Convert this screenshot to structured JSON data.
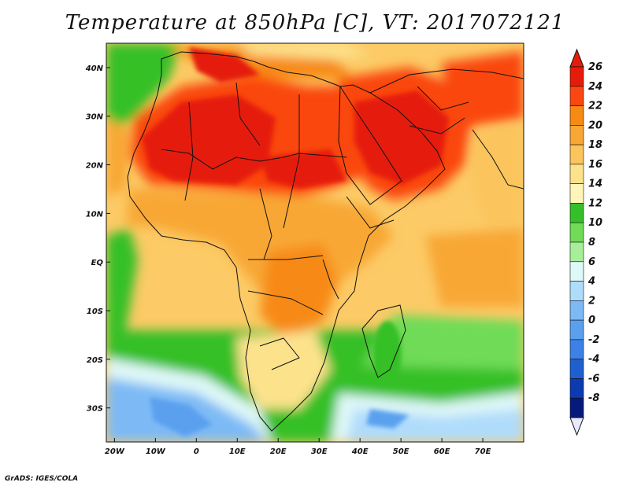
{
  "title": "Temperature at 850hPa [C], VT: 2017072121",
  "credit": "GrADS: IGES/COLA",
  "map": {
    "projection": "lat-lon",
    "lon_range": [
      -22,
      80
    ],
    "lat_range": [
      -37,
      45
    ],
    "lon_ticks": [
      {
        "value": -20,
        "label": "20W"
      },
      {
        "value": -10,
        "label": "10W"
      },
      {
        "value": 0,
        "label": "0"
      },
      {
        "value": 10,
        "label": "10E"
      },
      {
        "value": 20,
        "label": "20E"
      },
      {
        "value": 30,
        "label": "30E"
      },
      {
        "value": 40,
        "label": "40E"
      },
      {
        "value": 50,
        "label": "50E"
      },
      {
        "value": 60,
        "label": "60E"
      },
      {
        "value": 70,
        "label": "70E"
      }
    ],
    "lat_ticks": [
      {
        "value": 40,
        "label": "40N"
      },
      {
        "value": 30,
        "label": "30N"
      },
      {
        "value": 20,
        "label": "20N"
      },
      {
        "value": 10,
        "label": "10N"
      },
      {
        "value": 0,
        "label": "EQ"
      },
      {
        "value": -10,
        "label": "10S"
      },
      {
        "value": -20,
        "label": "20S"
      },
      {
        "value": -30,
        "label": "30S"
      }
    ],
    "variable": "850hPa temperature",
    "units": "C"
  },
  "colorbar": {
    "labels": [
      "26",
      "24",
      "22",
      "20",
      "18",
      "16",
      "14",
      "12",
      "10",
      "8",
      "6",
      "4",
      "2",
      "0",
      "-2",
      "-4",
      "-6",
      "-8"
    ],
    "colors": [
      "#e51b0b",
      "#fa4610",
      "#f78a12",
      "#f8a734",
      "#fbc45c",
      "#fde28c",
      "#fff5b8",
      "#34c028",
      "#6fdb57",
      "#a6ee98",
      "#dff8f8",
      "#b0dcfb",
      "#7dbaf5",
      "#5aa0ef",
      "#3c82e6",
      "#1f5fcf",
      "#0c3ab0",
      "#051a7a"
    ],
    "over_color": "#e51b0b",
    "under_color": "#e8e8ff"
  }
}
